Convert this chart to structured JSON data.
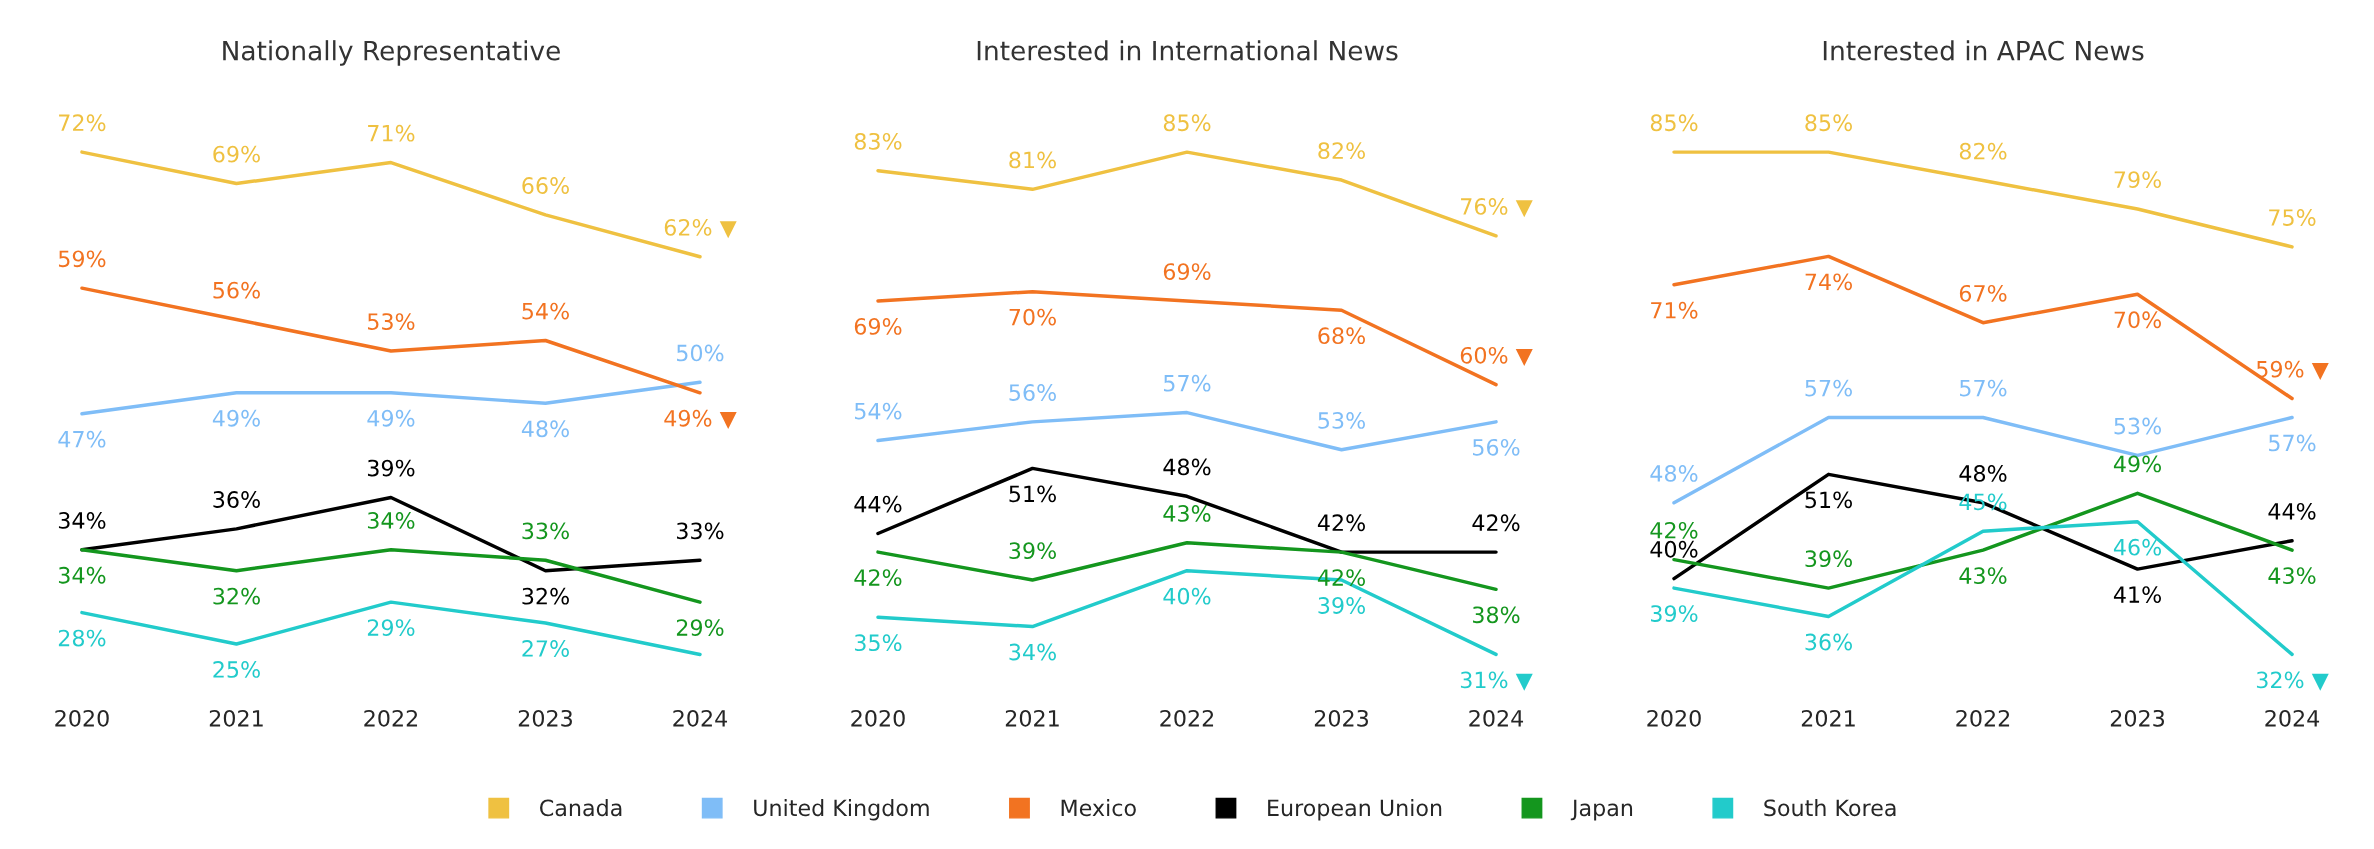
{
  "chart_data": [
    {
      "type": "line",
      "title": "Nationally Representative",
      "categories": [
        "2020",
        "2021",
        "2022",
        "2023",
        "2024"
      ],
      "tick_labels": "x",
      "grid": false,
      "legend": "bottom",
      "series": [
        {
          "name": "Canada",
          "color": "#efc141",
          "values": [
            72,
            69,
            71,
            66,
            62
          ],
          "value_labels": [
            "72%",
            "69%",
            "71%",
            "66%",
            "62% ▼"
          ]
        },
        {
          "name": "United Kingdom",
          "color": "#7fbdf7",
          "values": [
            47,
            49,
            49,
            48,
            50
          ],
          "value_labels": [
            "47%",
            "49%",
            "49%",
            "48%",
            "50%"
          ]
        },
        {
          "name": "Mexico",
          "color": "#f27321",
          "values": [
            59,
            56,
            53,
            54,
            49
          ],
          "value_labels": [
            "59%",
            "56%",
            "53%",
            "54%",
            "49% ▼"
          ]
        },
        {
          "name": "European Union",
          "color": "#000000",
          "values": [
            34,
            36,
            39,
            32,
            33
          ],
          "value_labels": [
            "34%",
            "36%",
            "39%",
            "32%",
            "33%"
          ]
        },
        {
          "name": "Japan",
          "color": "#14961e",
          "values": [
            34,
            32,
            34,
            33,
            29
          ],
          "value_labels": [
            "34%",
            "32%",
            "34%",
            "33%",
            "29%"
          ]
        },
        {
          "name": "South Korea",
          "color": "#22cbcb",
          "values": [
            28,
            25,
            29,
            27,
            24
          ],
          "value_labels": [
            "28%",
            "25%",
            "29%",
            "27%",
            null
          ]
        }
      ]
    },
    {
      "type": "line",
      "title": "Interested in International News",
      "categories": [
        "2020",
        "2021",
        "2022",
        "2023",
        "2024"
      ],
      "tick_labels": "x",
      "grid": false,
      "legend": "bottom",
      "series": [
        {
          "name": "Canada",
          "color": "#efc141",
          "values": [
            83,
            81,
            85,
            82,
            76
          ],
          "value_labels": [
            "83%",
            "81%",
            "85%",
            "82%",
            "76% ▼"
          ]
        },
        {
          "name": "United Kingdom",
          "color": "#7fbdf7",
          "values": [
            54,
            56,
            57,
            53,
            56
          ],
          "value_labels": [
            "54%",
            "56%",
            "57%",
            "53%",
            "56%"
          ]
        },
        {
          "name": "Mexico",
          "color": "#f27321",
          "values": [
            69,
            70,
            69,
            68,
            60
          ],
          "value_labels": [
            "69%",
            "70%",
            "69%",
            "68%",
            "60% ▼"
          ]
        },
        {
          "name": "European Union",
          "color": "#000000",
          "values": [
            44,
            51,
            48,
            42,
            42
          ],
          "value_labels": [
            "44%",
            "51%",
            "48%",
            "42%",
            "42%"
          ]
        },
        {
          "name": "Japan",
          "color": "#14961e",
          "values": [
            42,
            39,
            43,
            42,
            38
          ],
          "value_labels": [
            "42%",
            "39%",
            "43%",
            "42%",
            "38%"
          ]
        },
        {
          "name": "South Korea",
          "color": "#22cbcb",
          "values": [
            35,
            34,
            40,
            39,
            31
          ],
          "value_labels": [
            "35%",
            "34%",
            "40%",
            "39%",
            "31% ▼"
          ]
        }
      ]
    },
    {
      "type": "line",
      "title": "Interested in APAC News",
      "categories": [
        "2020",
        "2021",
        "2022",
        "2023",
        "2024"
      ],
      "tick_labels": "x",
      "grid": false,
      "legend": "bottom",
      "series": [
        {
          "name": "Canada",
          "color": "#efc141",
          "values": [
            85,
            85,
            82,
            79,
            75
          ],
          "value_labels": [
            "85%",
            "85%",
            "82%",
            "79%",
            "75%"
          ]
        },
        {
          "name": "United Kingdom",
          "color": "#7fbdf7",
          "values": [
            48,
            57,
            57,
            53,
            57
          ],
          "value_labels": [
            "48%",
            "57%",
            "57%",
            "53%",
            "57%"
          ]
        },
        {
          "name": "Mexico",
          "color": "#f27321",
          "values": [
            71,
            74,
            67,
            70,
            59
          ],
          "value_labels": [
            "71%",
            "74%",
            "67%",
            "70%",
            "59% ▼"
          ]
        },
        {
          "name": "European Union",
          "color": "#000000",
          "values": [
            40,
            51,
            48,
            41,
            44
          ],
          "value_labels": [
            "40%",
            "51%",
            "48%",
            "41%",
            "44%"
          ]
        },
        {
          "name": "Japan",
          "color": "#14961e",
          "values": [
            42,
            39,
            43,
            49,
            43
          ],
          "value_labels": [
            "42%",
            "39%",
            "43%",
            "49%",
            "43%"
          ]
        },
        {
          "name": "South Korea",
          "color": "#22cbcb",
          "values": [
            39,
            36,
            45,
            46,
            32
          ],
          "value_labels": [
            "39%",
            "36%",
            "45%",
            "46%",
            "32% ▼"
          ]
        }
      ]
    }
  ]
}
